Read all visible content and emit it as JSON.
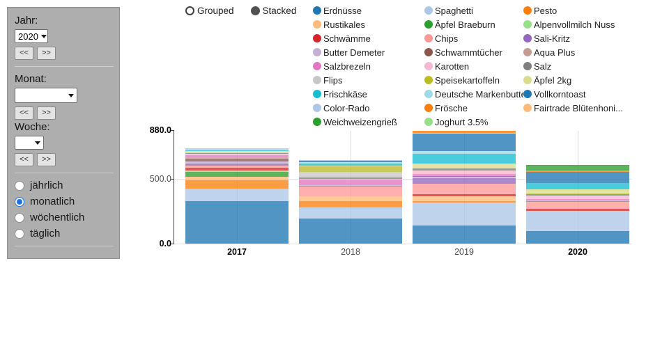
{
  "controls_panel": {
    "jahr": {
      "label": "Jahr:",
      "value": "2020",
      "prev": "<<",
      "next": ">>"
    },
    "monat": {
      "label": "Monat:",
      "value": "",
      "prev": "<<",
      "next": ">>"
    },
    "woche": {
      "label": "Woche:",
      "value": "",
      "prev": "<<",
      "next": ">>"
    },
    "interval_options": [
      {
        "label": "jährlich",
        "selected": false
      },
      {
        "label": "monatlich",
        "selected": true
      },
      {
        "label": "wöchentlich",
        "selected": false
      },
      {
        "label": "täglich",
        "selected": false
      }
    ]
  },
  "chart_controls": {
    "modes": [
      {
        "label": "Grouped",
        "selected": false
      },
      {
        "label": "Stacked",
        "selected": true
      }
    ]
  },
  "chart_data": {
    "type": "bar",
    "stacked": true,
    "title": "",
    "xlabel": "",
    "ylabel": "",
    "ylim": [
      0,
      880
    ],
    "grid": true,
    "legend_position": "top",
    "legend_columns": 3,
    "bar_opacity": 0.78,
    "y_ticks": [
      {
        "label": "0.0",
        "value": 0,
        "bold": true
      },
      {
        "label": "500.0",
        "value": 500,
        "bold": false
      },
      {
        "label": "880.0",
        "value": 880,
        "bold": true
      }
    ],
    "categories": [
      {
        "label": "2017",
        "bold": true
      },
      {
        "label": "2018",
        "bold": false
      },
      {
        "label": "2019",
        "bold": false
      },
      {
        "label": "2020",
        "bold": true
      }
    ],
    "totals": [
      742,
      649,
      876,
      612
    ],
    "series": [
      {
        "name": "Erdnüsse",
        "color": "#1f77b4",
        "values": [
          330,
          195,
          140,
          96
        ]
      },
      {
        "name": "Spaghetti",
        "color": "#aec7e8",
        "values": [
          95,
          85,
          180,
          160
        ]
      },
      {
        "name": "Pesto",
        "color": "#ff7f0e",
        "values": [
          65,
          50,
          11,
          0
        ]
      },
      {
        "name": "Rustikales",
        "color": "#ffbb78",
        "values": [
          27,
          38,
          38,
          0
        ]
      },
      {
        "name": "Äpfel Braeburn",
        "color": "#2ca02c",
        "values": [
          40,
          0,
          0,
          0
        ]
      },
      {
        "name": "Alpenvollmilch Nuss",
        "color": "#98df8a",
        "values": [
          11,
          0,
          0,
          0
        ]
      },
      {
        "name": "Schwämme",
        "color": "#d62728",
        "values": [
          22,
          0,
          14,
          16
        ]
      },
      {
        "name": "Chips",
        "color": "#ff9896",
        "values": [
          14,
          75,
          80,
          52
        ]
      },
      {
        "name": "Sali-Kritz",
        "color": "#9467bd",
        "values": [
          18,
          8,
          45,
          6
        ]
      },
      {
        "name": "Butter Demeter",
        "color": "#c5b0d5",
        "values": [
          18,
          5,
          9,
          6
        ]
      },
      {
        "name": "Schwammtücher",
        "color": "#8c564b",
        "values": [
          18,
          0,
          9,
          0
        ]
      },
      {
        "name": "Aqua Plus",
        "color": "#c49c94",
        "values": [
          13,
          0,
          0,
          0
        ]
      },
      {
        "name": "Salzbrezeln",
        "color": "#e377c2",
        "values": [
          13,
          40,
          14,
          8
        ]
      },
      {
        "name": "Karotten",
        "color": "#f7b6d2",
        "values": [
          14,
          5,
          27,
          30
        ]
      },
      {
        "name": "Salz",
        "color": "#7f7f7f",
        "values": [
          5,
          10,
          16,
          12
        ]
      },
      {
        "name": "Flips",
        "color": "#c7c7c7",
        "values": [
          5,
          45,
          0,
          0
        ]
      },
      {
        "name": "Speisekartoffeln",
        "color": "#bcbd22",
        "values": [
          0,
          42,
          0,
          4
        ]
      },
      {
        "name": "Äpfel 2kg",
        "color": "#dbdb8d",
        "values": [
          11,
          8,
          36,
          34
        ]
      },
      {
        "name": "Frischkäse",
        "color": "#17becf",
        "values": [
          5,
          16,
          80,
          48
        ]
      },
      {
        "name": "Deutsche Markenbutte...",
        "color": "#9edae5",
        "values": [
          5,
          11,
          18,
          0
        ]
      },
      {
        "name": "Vollkorntoast",
        "color": "#1f77b4",
        "values": [
          0,
          8,
          135,
          86
        ]
      },
      {
        "name": "Color-Rado",
        "color": "#aec7e8",
        "values": [
          13,
          8,
          9,
          0
        ]
      },
      {
        "name": "Frösche",
        "color": "#ff7f0e",
        "values": [
          0,
          0,
          12,
          12
        ]
      },
      {
        "name": "Fairtrade Blütenhoni...",
        "color": "#ffbb78",
        "values": [
          0,
          0,
          3,
          0
        ]
      },
      {
        "name": "Weichweizengrieß",
        "color": "#2ca02c",
        "values": [
          0,
          0,
          0,
          38
        ]
      },
      {
        "name": "Joghurt 3.5%",
        "color": "#98df8a",
        "values": [
          0,
          0,
          0,
          4
        ]
      }
    ]
  }
}
